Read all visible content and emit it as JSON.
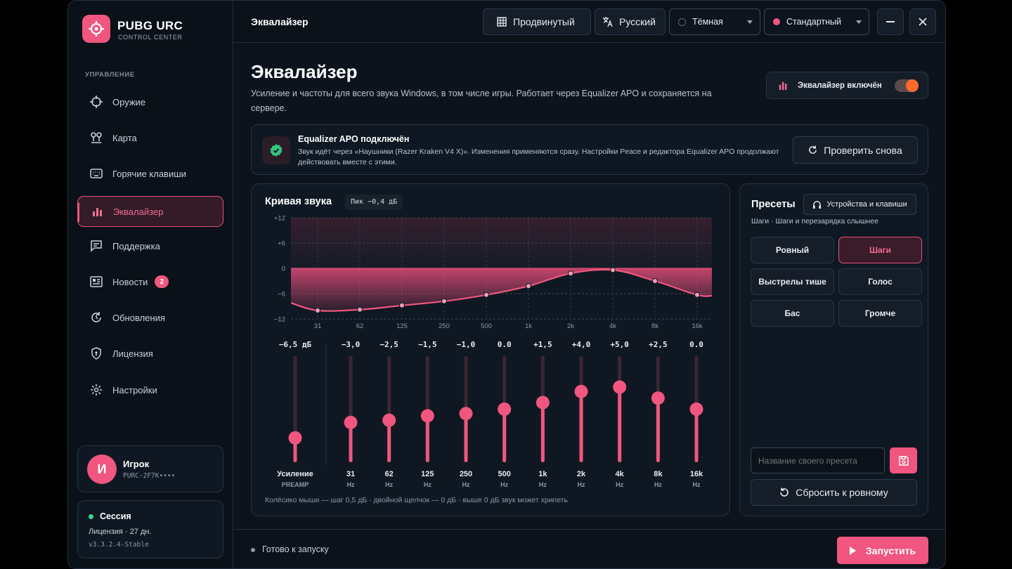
{
  "sidebar": {
    "brand": "PUBG URC",
    "brand_sub": "CONTROL CENTER",
    "section": "УПРАВЛЕНИЕ",
    "items": [
      {
        "label": "Оружие",
        "icon": "crosshair-icon"
      },
      {
        "label": "Карта",
        "icon": "map-pins-icon"
      },
      {
        "label": "Горячие клавиши",
        "icon": "keyboard-icon"
      },
      {
        "label": "Эквалайзер",
        "icon": "bars-icon",
        "active": true
      },
      {
        "label": "Поддержка",
        "icon": "chat-icon"
      },
      {
        "label": "Новости",
        "icon": "news-icon",
        "badge": "2"
      },
      {
        "label": "Обновления",
        "icon": "refresh-icon"
      },
      {
        "label": "Лицензия",
        "icon": "shield-icon"
      },
      {
        "label": "Настройки",
        "icon": "gear-icon"
      }
    ],
    "user": {
      "initial": "И",
      "name": "Игрок",
      "key": "PURC-2F7K••••"
    },
    "session": {
      "title": "Сессия",
      "license": "Лицензия · 27 дн.",
      "version": "v3.3.2.4-Stable"
    }
  },
  "topbar": {
    "title": "Эквалайзер",
    "advanced": "Продвинутый",
    "language": "Русский",
    "theme": "Тёмная",
    "profile": "Стандартный"
  },
  "main": {
    "title": "Эквалайзер",
    "description": "Усиление и частоты для всего звука Windows, в том числе игры. Работает через Equalizer APO и сохраняется на сервере.",
    "toggle_label": "Эквалайзер включён",
    "apo": {
      "title": "Equalizer APO подключён",
      "text": "Звук идёт через «Наушники (Razer Kraken V4 X)». Изменения применяются сразу. Настройки Peace и редактора Equalizer APO продолжают действовать вместе с этими.",
      "recheck": "Проверить снова"
    },
    "curve": {
      "title": "Кривая звука",
      "peak": "Пик −0,4 дБ",
      "preamp_value": "−6,5 дБ",
      "preamp_label": "Усиление",
      "preamp_sub": "PREAMP",
      "hint": "Колёсико мыши — шаг 0,5 дБ · двойной щелчок — 0 дБ · выше 0 дБ звук может хрипеть"
    },
    "presets": {
      "title": "Пресеты",
      "devices_btn": "Устройства и клавиши",
      "subtitle": "Шаги · Шаги и перезарядка слышнее",
      "items": [
        {
          "label": "Ровный"
        },
        {
          "label": "Шаги",
          "active": true
        },
        {
          "label": "Выстрелы тише"
        },
        {
          "label": "Голос"
        },
        {
          "label": "Бас"
        },
        {
          "label": "Громче"
        }
      ],
      "name_placeholder": "Название своего пресета",
      "reset": "Сбросить к ровному"
    },
    "status": "Готово к запуску",
    "run": "Запустить"
  },
  "chart_data": {
    "type": "line",
    "title": "Кривая звука",
    "x": [
      "31",
      "62",
      "125",
      "250",
      "500",
      "1k",
      "2k",
      "4k",
      "8k",
      "16k"
    ],
    "y_ticks": [
      "+12",
      "+6",
      "0",
      "−6",
      "−12"
    ],
    "ylim": [
      -12,
      12
    ],
    "preamp": -6.5,
    "preamp_slider": -6.5,
    "band_labels": [
      "−3,0",
      "−2,5",
      "−1,5",
      "−1,0",
      "0.0",
      "+1,5",
      "+4,0",
      "+5,0",
      "+2,5",
      "0.0"
    ],
    "band_gains": [
      -3.0,
      -2.5,
      -1.5,
      -1.0,
      0.0,
      1.5,
      4.0,
      5.0,
      2.5,
      0.0
    ],
    "curve_points": [
      -10,
      -9.8,
      -8.8,
      -7.8,
      -6.3,
      -4.2,
      -1.2,
      -0.4,
      -3,
      -6.3
    ],
    "unit": "Hz",
    "slider_range": [
      -12,
      12
    ]
  }
}
